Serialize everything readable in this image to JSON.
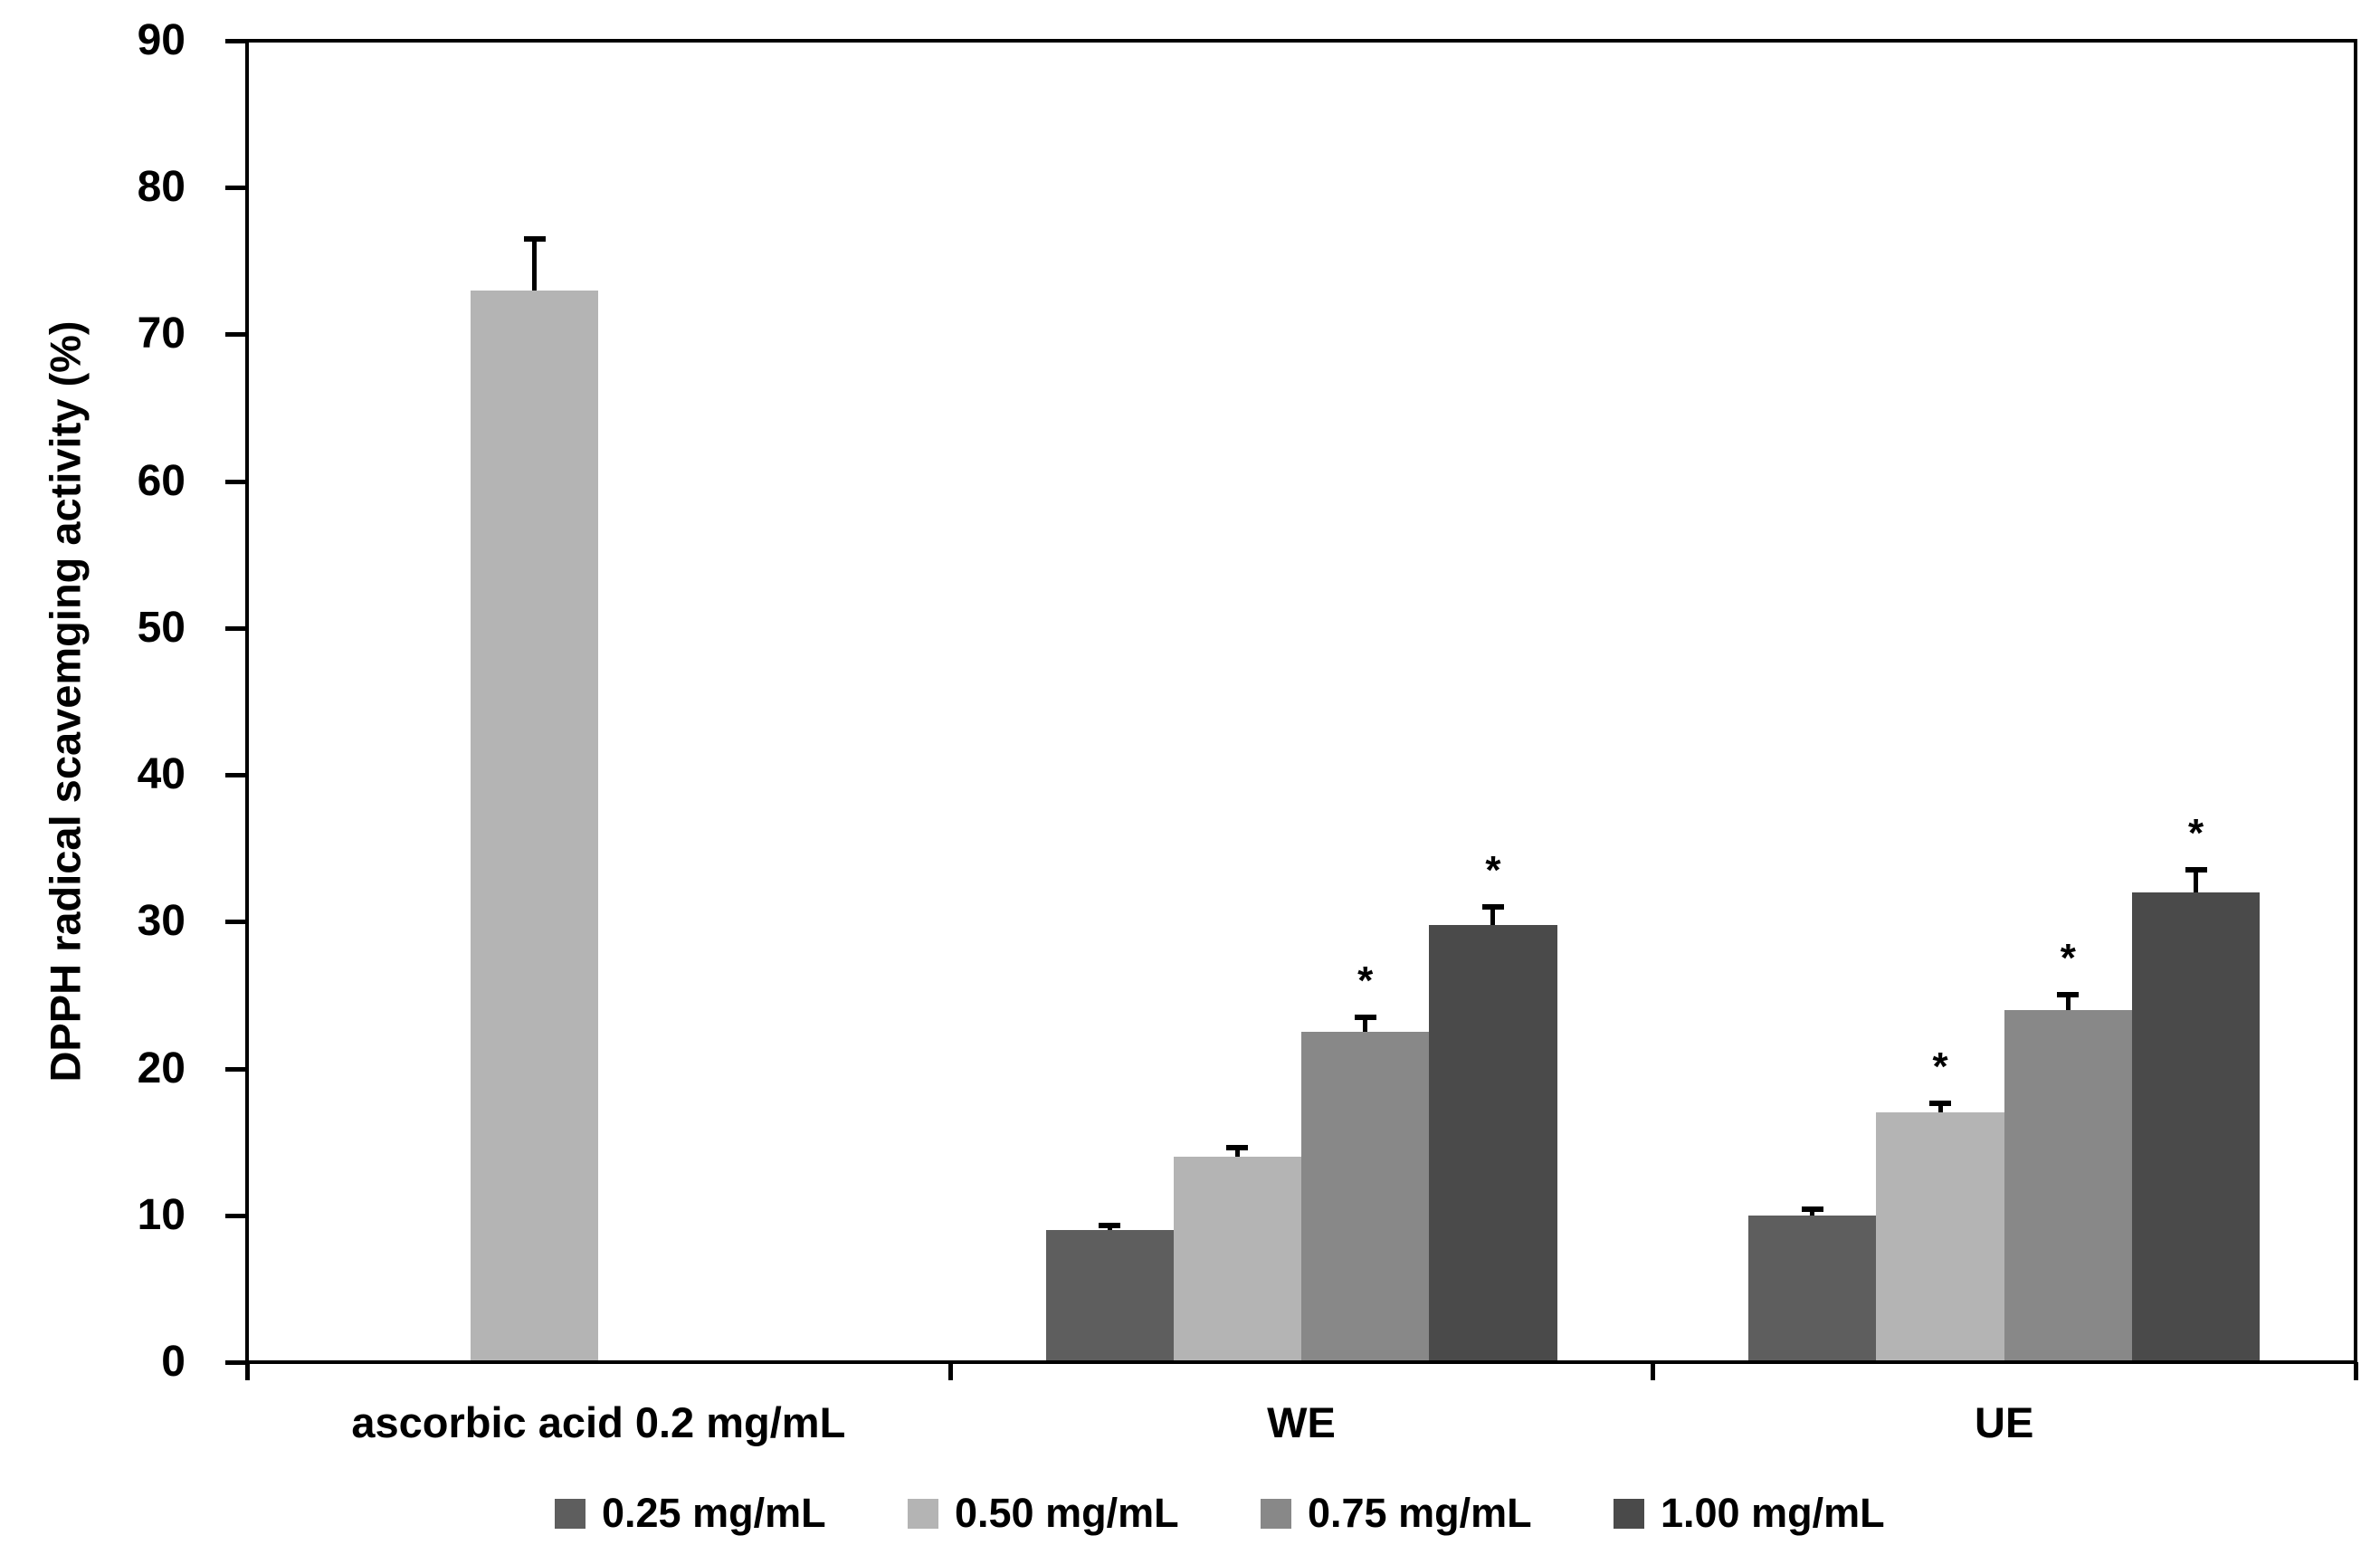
{
  "chart_data": {
    "type": "bar",
    "title": "",
    "xlabel": "",
    "ylabel": "DPPH radical scavemging activity (%)",
    "ylim": [
      0,
      90
    ],
    "yticks": [
      0,
      10,
      20,
      30,
      40,
      50,
      60,
      70,
      80,
      90
    ],
    "grid": false,
    "frame": true,
    "legend_position": "bottom",
    "significance_marker": "*",
    "axis_color": "#000000",
    "categories": [
      "ascorbic acid 0.2 mg/mL",
      "WE",
      "UE"
    ],
    "series": [
      {
        "name": "0.25 mg/mL",
        "color": "#5e5e5e",
        "values": [
          null,
          9,
          10
        ],
        "errors": [
          null,
          0.5,
          0.6
        ],
        "significant": [
          false,
          false,
          false
        ]
      },
      {
        "name": "0.50 mg/mL",
        "color": "#b4b4b4",
        "values": [
          73,
          14,
          17
        ],
        "errors": [
          3.7,
          0.8,
          0.8
        ],
        "significant": [
          false,
          false,
          true
        ]
      },
      {
        "name": "0.75 mg/mL",
        "color": "#888888",
        "values": [
          null,
          22.5,
          24
        ],
        "errors": [
          null,
          1.2,
          1.2
        ],
        "significant": [
          false,
          true,
          true
        ]
      },
      {
        "name": "1.00 mg/mL",
        "color": "#4a4a4a",
        "values": [
          null,
          29.8,
          32
        ],
        "errors": [
          null,
          1.4,
          1.7
        ],
        "significant": [
          false,
          true,
          true
        ]
      }
    ]
  }
}
